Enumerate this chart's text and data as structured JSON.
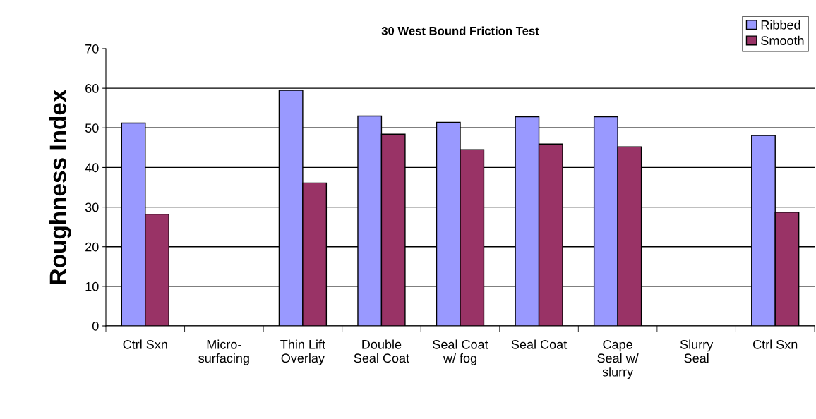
{
  "chart_data": {
    "type": "bar",
    "title": "30 West Bound Friction Test",
    "ylabel": "Roughness Index",
    "categories": [
      "Ctrl Sxn",
      "Micro-\nsurfacing",
      "Thin Lift\nOverlay",
      "Double\nSeal Coat",
      "Seal Coat\nw/ fog",
      "Seal Coat",
      "Cape\nSeal w/\nslurry",
      "Slurry\nSeal",
      "Ctrl Sxn"
    ],
    "series": [
      {
        "name": "Ribbed",
        "color": "#9999ff",
        "values": [
          51.2,
          null,
          59.5,
          53.0,
          51.4,
          52.8,
          52.8,
          null,
          48.1
        ]
      },
      {
        "name": "Smooth",
        "color": "#993366",
        "values": [
          28.2,
          null,
          36.1,
          48.4,
          44.5,
          45.9,
          45.2,
          null,
          28.7
        ]
      }
    ],
    "ylim": [
      0,
      70
    ],
    "yticks": [
      0,
      10,
      20,
      30,
      40,
      50,
      60,
      70
    ],
    "grid": "y",
    "legend": "top right"
  }
}
